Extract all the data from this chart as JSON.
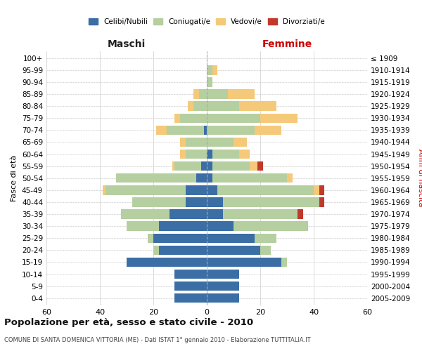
{
  "age_groups": [
    "0-4",
    "5-9",
    "10-14",
    "15-19",
    "20-24",
    "25-29",
    "30-34",
    "35-39",
    "40-44",
    "45-49",
    "50-54",
    "55-59",
    "60-64",
    "65-69",
    "70-74",
    "75-79",
    "80-84",
    "85-89",
    "90-94",
    "95-99",
    "100+"
  ],
  "birth_years": [
    "2005-2009",
    "2000-2004",
    "1995-1999",
    "1990-1994",
    "1985-1989",
    "1980-1984",
    "1975-1979",
    "1970-1974",
    "1965-1969",
    "1960-1964",
    "1955-1959",
    "1950-1954",
    "1945-1949",
    "1940-1944",
    "1935-1939",
    "1930-1934",
    "1925-1929",
    "1920-1924",
    "1915-1919",
    "1910-1914",
    "≤ 1909"
  ],
  "males": {
    "celibi": [
      12,
      12,
      12,
      30,
      18,
      20,
      18,
      14,
      8,
      8,
      4,
      2,
      0,
      0,
      1,
      0,
      0,
      0,
      0,
      0,
      0
    ],
    "coniugati": [
      0,
      0,
      0,
      0,
      2,
      2,
      12,
      18,
      20,
      30,
      30,
      10,
      8,
      8,
      14,
      10,
      5,
      3,
      0,
      0,
      0
    ],
    "vedovi": [
      0,
      0,
      0,
      0,
      0,
      0,
      0,
      0,
      0,
      1,
      0,
      1,
      2,
      2,
      4,
      2,
      2,
      2,
      0,
      0,
      0
    ],
    "divorziati": [
      0,
      0,
      0,
      0,
      0,
      0,
      0,
      0,
      0,
      0,
      0,
      0,
      0,
      0,
      0,
      0,
      0,
      0,
      0,
      0,
      0
    ]
  },
  "females": {
    "nubili": [
      12,
      12,
      12,
      28,
      20,
      18,
      10,
      6,
      6,
      4,
      2,
      2,
      2,
      0,
      0,
      0,
      0,
      0,
      0,
      0,
      0
    ],
    "coniugate": [
      0,
      0,
      0,
      2,
      4,
      8,
      28,
      28,
      36,
      36,
      28,
      14,
      10,
      10,
      18,
      20,
      12,
      8,
      2,
      2,
      0
    ],
    "vedove": [
      0,
      0,
      0,
      0,
      0,
      0,
      0,
      0,
      0,
      2,
      2,
      3,
      4,
      5,
      10,
      14,
      14,
      10,
      0,
      2,
      0
    ],
    "divorziate": [
      0,
      0,
      0,
      0,
      0,
      0,
      0,
      2,
      2,
      2,
      0,
      2,
      0,
      0,
      0,
      0,
      0,
      0,
      0,
      0,
      0
    ]
  },
  "colors": {
    "celibi": "#3a6ea5",
    "coniugati": "#b5cfa0",
    "vedovi": "#f5c97a",
    "divorziati": "#c0392b"
  },
  "xlim": 60,
  "title": "Popolazione per età, sesso e stato civile - 2010",
  "subtitle": "COMUNE DI SANTA DOMENICA VITTORIA (ME) - Dati ISTAT 1° gennaio 2010 - Elaborazione TUTTITALIA.IT",
  "xlabel_left": "Maschi",
  "xlabel_right": "Femmine",
  "ylabel_left": "Fasce di età",
  "ylabel_right": "Anni di nascita",
  "bg_color": "#f5f5f0"
}
